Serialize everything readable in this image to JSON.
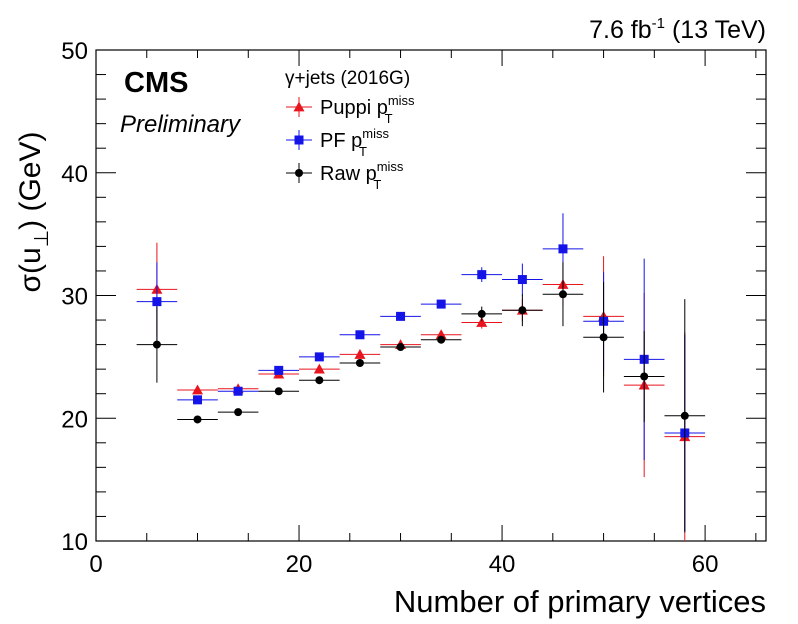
{
  "header": {
    "lumi": "7.6 fb",
    "lumi_exp": "-1",
    "energy": " (13 TeV)"
  },
  "cms_label": "CMS",
  "prelim_label": "Preliminary",
  "chart_data": {
    "type": "scatter",
    "xlabel": "Number of primary vertices",
    "ylabel": "σ(u⊥) (GeV)",
    "xlim": [
      0,
      66
    ],
    "ylim": [
      10,
      50
    ],
    "x_ticks": [
      0,
      20,
      40,
      60
    ],
    "y_ticks": [
      10,
      20,
      30,
      40,
      50
    ],
    "legend": {
      "placement": "top-left",
      "header": "γ+jets (2016G)"
    },
    "series": [
      {
        "name": "Puppi p_T^miss",
        "label_main": "Puppi p",
        "label_sup": "miss",
        "label_sub": "T",
        "color": "#e8141e",
        "marker": "triangle",
        "points": [
          {
            "x": 6,
            "xerr": 2,
            "y": 30.5,
            "yerr": 3.8
          },
          {
            "x": 10,
            "xerr": 2,
            "y": 22.3,
            "yerr": 0.3
          },
          {
            "x": 14,
            "xerr": 2,
            "y": 22.4,
            "yerr": 0.2
          },
          {
            "x": 18,
            "xerr": 2,
            "y": 23.6,
            "yerr": 0.2
          },
          {
            "x": 22,
            "xerr": 2,
            "y": 24.0,
            "yerr": 0.2
          },
          {
            "x": 26,
            "xerr": 2,
            "y": 25.2,
            "yerr": 0.2
          },
          {
            "x": 30,
            "xerr": 2,
            "y": 26.0,
            "yerr": 0.2
          },
          {
            "x": 34,
            "xerr": 2,
            "y": 26.8,
            "yerr": 0.3
          },
          {
            "x": 38,
            "xerr": 2,
            "y": 27.8,
            "yerr": 0.5
          },
          {
            "x": 42,
            "xerr": 2,
            "y": 28.8,
            "yerr": 0.9
          },
          {
            "x": 46,
            "xerr": 2,
            "y": 30.9,
            "yerr": 1.8
          },
          {
            "x": 50,
            "xerr": 2,
            "y": 28.3,
            "yerr": 4.9
          },
          {
            "x": 54,
            "xerr": 2,
            "y": 22.7,
            "yerr": 7.5
          },
          {
            "x": 58,
            "xerr": 2,
            "y": 18.5,
            "yerr": 8.5
          }
        ]
      },
      {
        "name": "PF p_T^miss",
        "label_main": "PF p",
        "label_sup": "miss",
        "label_sub": "T",
        "color": "#1414e8",
        "marker": "square",
        "points": [
          {
            "x": 6,
            "xerr": 2,
            "y": 29.5,
            "yerr": 3.2
          },
          {
            "x": 10,
            "xerr": 2,
            "y": 21.5,
            "yerr": 0.3
          },
          {
            "x": 14,
            "xerr": 2,
            "y": 22.2,
            "yerr": 0.2
          },
          {
            "x": 18,
            "xerr": 2,
            "y": 23.9,
            "yerr": 0.2
          },
          {
            "x": 22,
            "xerr": 2,
            "y": 25.0,
            "yerr": 0.2
          },
          {
            "x": 26,
            "xerr": 2,
            "y": 26.8,
            "yerr": 0.2
          },
          {
            "x": 30,
            "xerr": 2,
            "y": 28.3,
            "yerr": 0.2
          },
          {
            "x": 34,
            "xerr": 2,
            "y": 29.3,
            "yerr": 0.3
          },
          {
            "x": 38,
            "xerr": 2,
            "y": 31.7,
            "yerr": 0.6
          },
          {
            "x": 42,
            "xerr": 2,
            "y": 31.3,
            "yerr": 1.3
          },
          {
            "x": 46,
            "xerr": 2,
            "y": 33.8,
            "yerr": 2.9
          },
          {
            "x": 50,
            "xerr": 2,
            "y": 27.9,
            "yerr": 4.0
          },
          {
            "x": 54,
            "xerr": 2,
            "y": 24.8,
            "yerr": 8.2
          },
          {
            "x": 58,
            "xerr": 2,
            "y": 18.8,
            "yerr": 8.0
          }
        ]
      },
      {
        "name": "Raw p_T^miss",
        "label_main": "Raw p",
        "label_sup": "miss",
        "label_sub": "T",
        "color": "#000000",
        "marker": "circle",
        "points": [
          {
            "x": 6,
            "xerr": 2,
            "y": 26.0,
            "yerr": 3.1
          },
          {
            "x": 10,
            "xerr": 2,
            "y": 19.9,
            "yerr": 0.2
          },
          {
            "x": 14,
            "xerr": 2,
            "y": 20.5,
            "yerr": 0.2
          },
          {
            "x": 18,
            "xerr": 2,
            "y": 22.2,
            "yerr": 0.2
          },
          {
            "x": 22,
            "xerr": 2,
            "y": 23.1,
            "yerr": 0.2
          },
          {
            "x": 26,
            "xerr": 2,
            "y": 24.5,
            "yerr": 0.2
          },
          {
            "x": 30,
            "xerr": 2,
            "y": 25.8,
            "yerr": 0.2
          },
          {
            "x": 34,
            "xerr": 2,
            "y": 26.4,
            "yerr": 0.3
          },
          {
            "x": 38,
            "xerr": 2,
            "y": 28.5,
            "yerr": 0.6
          },
          {
            "x": 42,
            "xerr": 2,
            "y": 28.8,
            "yerr": 1.3
          },
          {
            "x": 46,
            "xerr": 2,
            "y": 30.1,
            "yerr": 2.6
          },
          {
            "x": 50,
            "xerr": 2,
            "y": 26.6,
            "yerr": 4.5
          },
          {
            "x": 54,
            "xerr": 2,
            "y": 23.4,
            "yerr": 3.7
          },
          {
            "x": 58,
            "xerr": 2,
            "y": 20.2,
            "yerr": 9.5
          }
        ]
      }
    ]
  }
}
